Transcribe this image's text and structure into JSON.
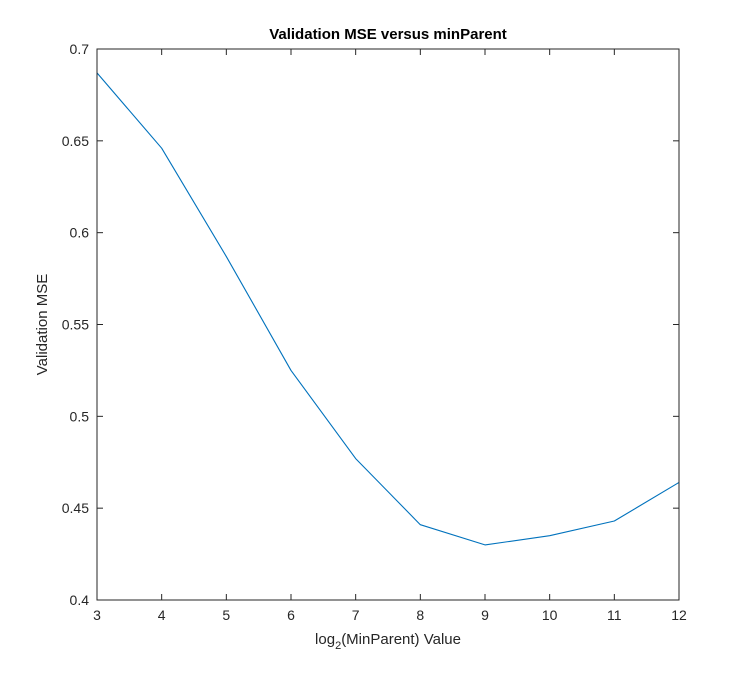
{
  "chart_data": {
    "type": "line",
    "title": "Validation MSE versus minParent",
    "xlabel": {
      "prefix": "log",
      "subscript": "2",
      "suffix": "(MinParent) Value"
    },
    "ylabel": "Validation MSE",
    "xlim": [
      3,
      12
    ],
    "ylim": [
      0.4,
      0.7
    ],
    "x_ticks": [
      3,
      4,
      5,
      6,
      7,
      8,
      9,
      10,
      11,
      12
    ],
    "y_ticks": [
      0.4,
      0.45,
      0.5,
      0.55,
      0.6,
      0.65,
      0.7
    ],
    "y_tick_labels": [
      "0.4",
      "0.45",
      "0.5",
      "0.55",
      "0.6",
      "0.65",
      "0.7"
    ],
    "grid": false,
    "series": [
      {
        "color": "#0072bd",
        "x": [
          3,
          4,
          5,
          6,
          7,
          8,
          9,
          10,
          11,
          12
        ],
        "y": [
          0.687,
          0.646,
          0.587,
          0.525,
          0.477,
          0.441,
          0.43,
          0.435,
          0.443,
          0.464
        ]
      }
    ]
  }
}
